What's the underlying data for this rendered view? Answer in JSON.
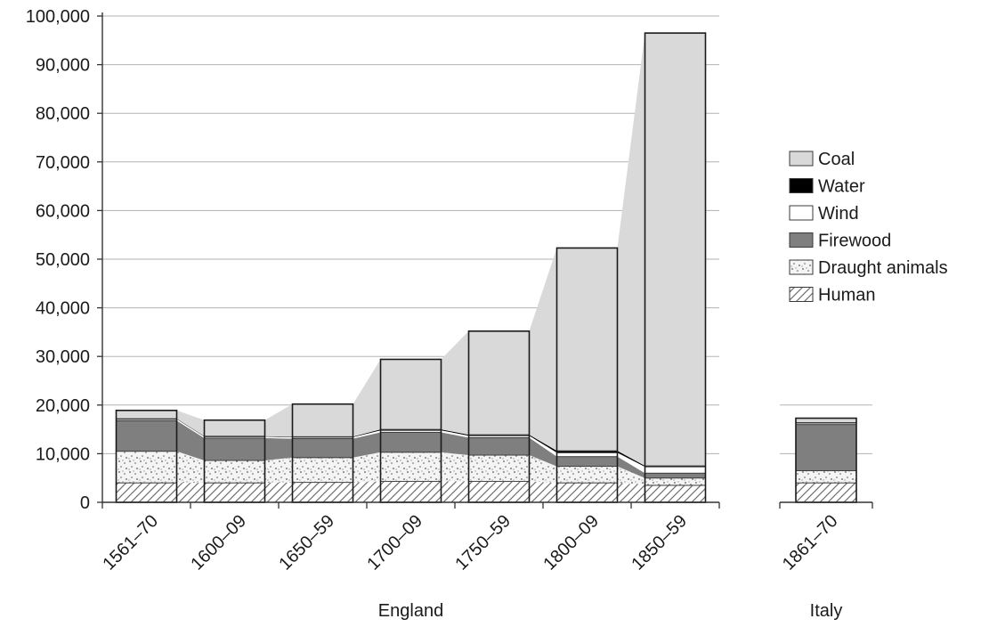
{
  "chart_data": {
    "type": "bar",
    "stacked": true,
    "y_ticks": [
      "0",
      "10,000",
      "20,000",
      "30,000",
      "40,000",
      "50,000",
      "60,000",
      "70,000",
      "80,000",
      "90,000",
      "100,000"
    ],
    "ylim": [
      0,
      100000
    ],
    "grid": true,
    "legend_position": "right",
    "series": [
      {
        "name": "Human",
        "key": "human",
        "fill": "hatch",
        "color": "#ffffff"
      },
      {
        "name": "Draught animals",
        "key": "draught",
        "fill": "dots",
        "color": "#f2f2f2"
      },
      {
        "name": "Firewood",
        "key": "firewood",
        "fill": "solid",
        "color": "#7f7f7f"
      },
      {
        "name": "Wind",
        "key": "wind",
        "fill": "solid",
        "color": "#ffffff"
      },
      {
        "name": "Water",
        "key": "water",
        "fill": "solid",
        "color": "#000000"
      },
      {
        "name": "Coal",
        "key": "coal",
        "fill": "solid",
        "color": "#d9d9d9"
      }
    ],
    "groups": [
      {
        "label": "England",
        "area_fill": "#d9d9d9",
        "categories": [
          "1561–70",
          "1600–09",
          "1650–59",
          "1700–09",
          "1750–59",
          "1800–09",
          "1850–59"
        ],
        "values": {
          "human": [
            4000,
            4000,
            4100,
            4300,
            4300,
            4000,
            3500
          ],
          "draught": [
            6500,
            4600,
            5100,
            6000,
            5400,
            3400,
            1500
          ],
          "firewood": [
            6300,
            4600,
            3900,
            4100,
            3600,
            2000,
            1000
          ],
          "wind": [
            300,
            300,
            300,
            400,
            400,
            800,
            1300
          ],
          "water": [
            100,
            100,
            100,
            200,
            200,
            400,
            200
          ],
          "coal": [
            1700,
            3300,
            6700,
            14400,
            21300,
            41700,
            89000
          ]
        }
      },
      {
        "label": "Italy",
        "categories": [
          "1861–70"
        ],
        "values": {
          "human": [
            4000
          ],
          "draught": [
            2500
          ],
          "firewood": [
            9500
          ],
          "wind": [
            300
          ],
          "water": [
            100
          ],
          "coal": [
            900
          ]
        }
      }
    ]
  }
}
